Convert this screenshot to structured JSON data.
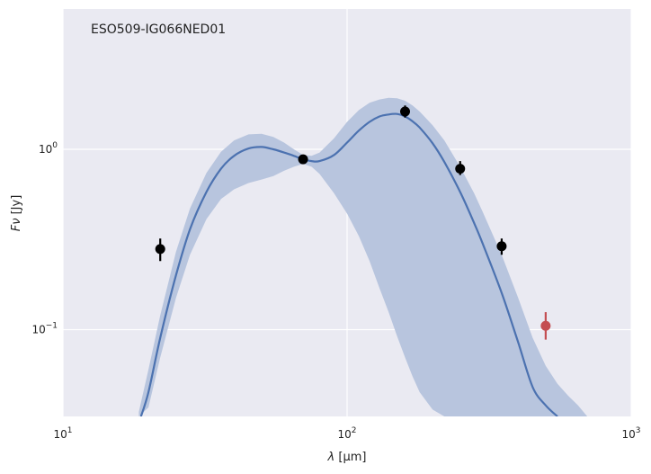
{
  "chart_data": {
    "type": "scatter",
    "annotation": "ESO509-IG066NED01",
    "xlabel": {
      "symbol": "λ",
      "unit": " [μm]"
    },
    "ylabel": {
      "symbol": "Fν",
      "unit": " [Jy]"
    },
    "xscale": "log",
    "yscale": "log",
    "xlim": [
      10,
      1000
    ],
    "ylim": [
      0.033,
      6
    ],
    "x_ticks": [
      {
        "value": 10,
        "base": "10",
        "exp": "1"
      },
      {
        "value": 100,
        "base": "10",
        "exp": "2"
      },
      {
        "value": 1000,
        "base": "10",
        "exp": "3"
      }
    ],
    "y_ticks": [
      {
        "value": 0.1,
        "base": "10",
        "exp": "−1"
      },
      {
        "value": 1,
        "base": "10",
        "exp": "0"
      }
    ],
    "grid": true,
    "colors": {
      "background": "#eaeaf2",
      "grid": "#ffffff",
      "model_line": "#4c72b0",
      "model_band": "#b8c5de",
      "detections": "#000000",
      "upper_limit": "#c44e52"
    },
    "model_curve": {
      "x": [
        18.7,
        20,
        22,
        25,
        28,
        32,
        36,
        40,
        45,
        50,
        55,
        60,
        65,
        70,
        75,
        80,
        90,
        100,
        110,
        120,
        130,
        140,
        150,
        160,
        170,
        180,
        200,
        220,
        250,
        280,
        300,
        350,
        400,
        450,
        500,
        550
      ],
      "y": [
        0.032,
        0.045,
        0.09,
        0.2,
        0.36,
        0.58,
        0.78,
        0.92,
        1.01,
        1.03,
        1.0,
        0.96,
        0.92,
        0.88,
        0.86,
        0.86,
        0.93,
        1.09,
        1.27,
        1.42,
        1.52,
        1.56,
        1.57,
        1.52,
        1.43,
        1.32,
        1.08,
        0.85,
        0.58,
        0.39,
        0.3,
        0.16,
        0.085,
        0.048,
        0.038,
        0.033
      ]
    },
    "model_band": {
      "x": [
        18.5,
        20,
        22,
        25,
        28,
        32,
        36,
        40,
        45,
        50,
        55,
        60,
        65,
        70,
        75,
        80,
        90,
        100,
        110,
        120,
        130,
        140,
        150,
        160,
        170,
        180,
        200,
        220,
        250,
        280,
        300,
        350,
        400,
        450,
        500,
        550,
        600,
        650,
        700
      ],
      "upper": [
        0.035,
        0.06,
        0.12,
        0.27,
        0.47,
        0.74,
        0.97,
        1.12,
        1.21,
        1.22,
        1.17,
        1.09,
        1.0,
        0.93,
        0.92,
        0.96,
        1.15,
        1.42,
        1.65,
        1.81,
        1.89,
        1.93,
        1.92,
        1.86,
        1.75,
        1.62,
        1.36,
        1.12,
        0.8,
        0.57,
        0.45,
        0.26,
        0.15,
        0.09,
        0.063,
        0.05,
        0.043,
        0.038,
        0.033
      ],
      "lower": [
        0.033,
        0.037,
        0.07,
        0.15,
        0.26,
        0.41,
        0.53,
        0.6,
        0.65,
        0.68,
        0.71,
        0.76,
        0.8,
        0.83,
        0.8,
        0.73,
        0.57,
        0.44,
        0.33,
        0.24,
        0.17,
        0.125,
        0.092,
        0.07,
        0.055,
        0.045,
        0.036,
        0.033,
        0.033,
        0.033,
        0.033,
        0.033,
        0.033,
        0.033,
        0.033,
        0.033,
        0.033,
        0.033,
        0.033
      ]
    },
    "detections": [
      {
        "x": 22,
        "y": 0.28,
        "yerr_low": 0.24,
        "yerr_high": 0.32
      },
      {
        "x": 70,
        "y": 0.88,
        "yerr_low": 0.85,
        "yerr_high": 0.92
      },
      {
        "x": 160,
        "y": 1.62,
        "yerr_low": 1.5,
        "yerr_high": 1.75
      },
      {
        "x": 250,
        "y": 0.78,
        "yerr_low": 0.72,
        "yerr_high": 0.86
      },
      {
        "x": 350,
        "y": 0.29,
        "yerr_low": 0.26,
        "yerr_high": 0.32
      }
    ],
    "upper_limits": [
      {
        "x": 500,
        "y": 0.105,
        "yerr_low": 0.088,
        "yerr_high": 0.125
      }
    ]
  }
}
